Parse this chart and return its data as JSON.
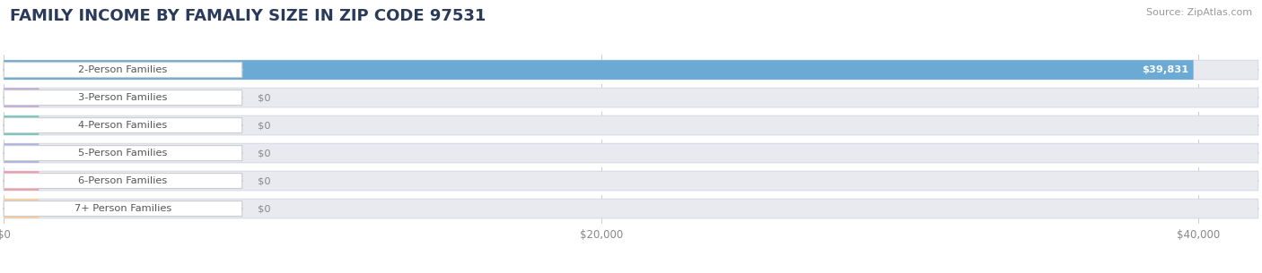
{
  "title": "FAMILY INCOME BY FAMALIY SIZE IN ZIP CODE 97531",
  "source": "Source: ZipAtlas.com",
  "categories": [
    "2-Person Families",
    "3-Person Families",
    "4-Person Families",
    "5-Person Families",
    "6-Person Families",
    "7+ Person Families"
  ],
  "values": [
    39831,
    0,
    0,
    0,
    0,
    0
  ],
  "bar_colors": [
    "#6aaad4",
    "#c4add8",
    "#72c8bc",
    "#b0b4e0",
    "#f797ab",
    "#f7cfa0"
  ],
  "xlim_max": 42000,
  "xticks": [
    0,
    20000,
    40000
  ],
  "xticklabels": [
    "$0",
    "$20,000",
    "$40,000"
  ],
  "bg_color": "#ffffff",
  "row_bg_color": "#e8eaf0",
  "title_fontsize": 13,
  "figsize": [
    14.06,
    3.05
  ],
  "dpi": 100
}
